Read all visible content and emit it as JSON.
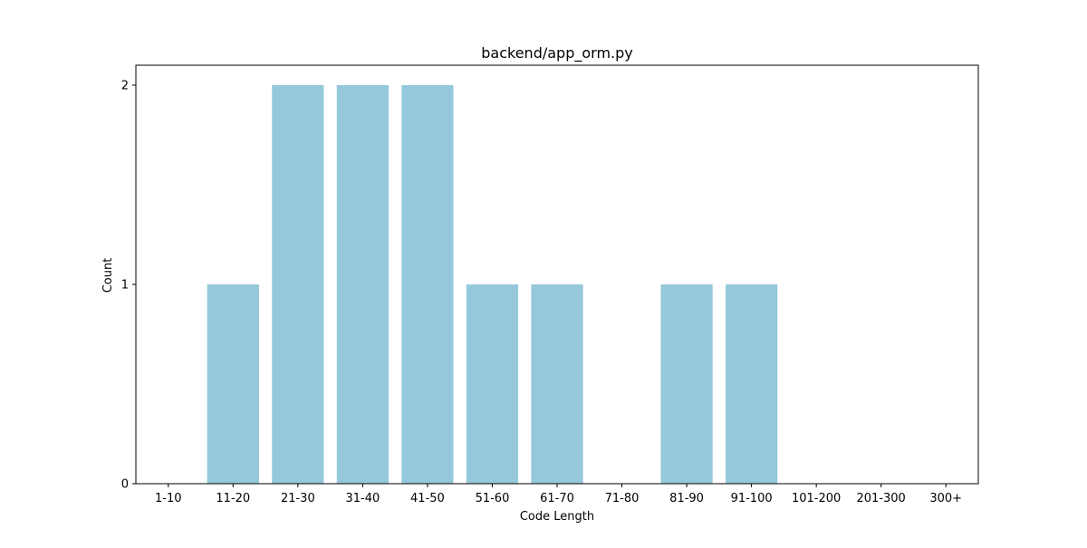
{
  "chart_data": {
    "type": "bar",
    "title": "backend/app_orm.py",
    "xlabel": "Code Length",
    "ylabel": "Count",
    "categories": [
      "1-10",
      "11-20",
      "21-30",
      "31-40",
      "41-50",
      "51-60",
      "61-70",
      "71-80",
      "81-90",
      "91-100",
      "101-200",
      "201-300",
      "300+"
    ],
    "values": [
      0,
      1,
      2,
      2,
      2,
      1,
      1,
      0,
      1,
      1,
      0,
      0,
      0
    ],
    "yticks": [
      0,
      1,
      2
    ],
    "ylim": [
      0,
      2.1
    ],
    "grid": false,
    "bar_color": "#96c8dc"
  }
}
